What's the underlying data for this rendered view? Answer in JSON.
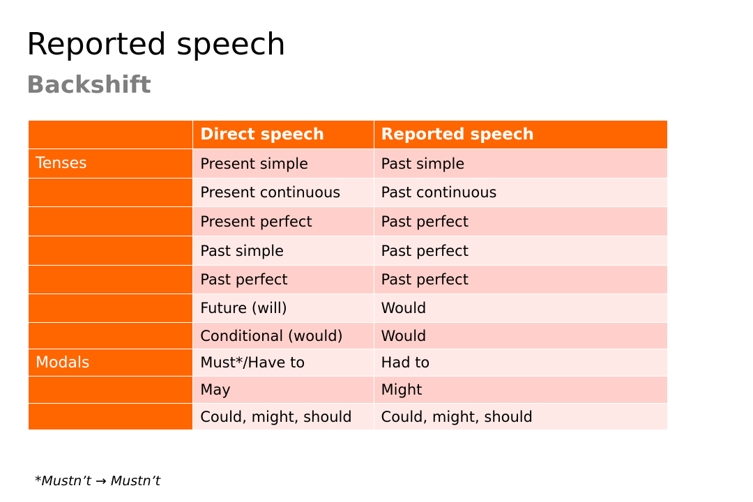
{
  "slide": {
    "title": "Reported speech",
    "subtitle": "Backshift",
    "footnote": "*Mustn’t → Mustn’t"
  },
  "table": {
    "headers": [
      "",
      "Direct speech",
      "Reported speech"
    ],
    "rows": [
      {
        "group": "Tenses",
        "direct": "Present simple",
        "reported": "Past simple"
      },
      {
        "group": "",
        "direct": "Present continuous",
        "reported": "Past continuous"
      },
      {
        "group": "",
        "direct": "Present perfect",
        "reported": "Past perfect"
      },
      {
        "group": "",
        "direct": "Past simple",
        "reported": "Past perfect"
      },
      {
        "group": "",
        "direct": "Past perfect",
        "reported": "Past perfect"
      },
      {
        "group": "",
        "direct": "Future (will)",
        "reported": "Would"
      },
      {
        "group": "",
        "direct": "Conditional (would)",
        "reported": "Would"
      },
      {
        "group": "Modals",
        "direct": "Must*/Have to",
        "reported": "Had to"
      },
      {
        "group": "",
        "direct": "May",
        "reported": "Might"
      },
      {
        "group": "",
        "direct": "Could, might, should",
        "reported": "Could, might, should"
      }
    ]
  },
  "colors": {
    "accent": "#ff6600",
    "row_dark": "#ffd0cb",
    "row_light": "#ffe9e6",
    "subtitle": "#7f7f7f"
  }
}
